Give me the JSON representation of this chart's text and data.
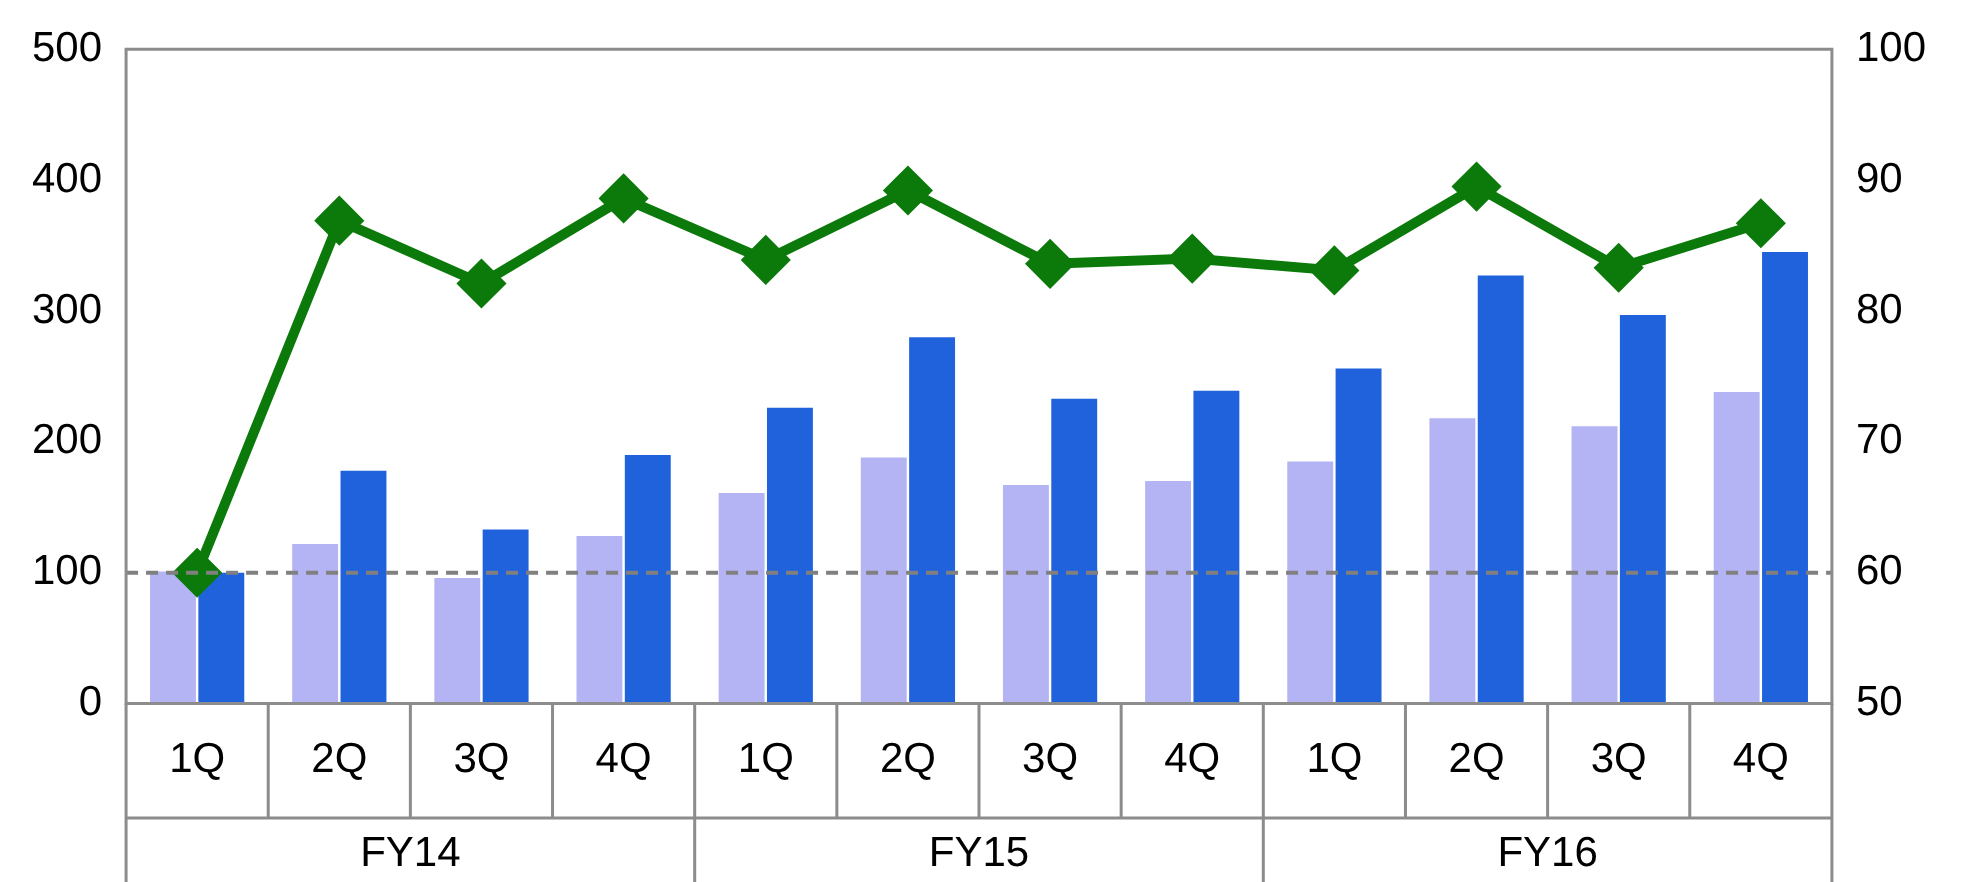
{
  "chart_data": {
    "type": "bar",
    "categories": [
      "1Q",
      "2Q",
      "3Q",
      "4Q",
      "1Q",
      "2Q",
      "3Q",
      "4Q",
      "1Q",
      "2Q",
      "3Q",
      "4Q"
    ],
    "annotations": [
      "FY14",
      "FY15",
      "FY16"
    ],
    "series": [
      {
        "color": "#b4b4f4",
        "values": [
          101,
          122,
          96,
          128,
          161,
          188,
          167,
          170,
          185,
          218,
          212,
          238
        ]
      },
      {
        "color": "#1f62dc",
        "values": [
          100,
          178,
          133,
          190,
          226,
          280,
          233,
          239,
          256,
          327,
          297,
          345
        ]
      },
      {
        "type": "line",
        "axis": "y2",
        "color": "#0b7a0b",
        "marker": "diamond",
        "line_style": "solid",
        "values": [
          60,
          86.9,
          82.1,
          88.6,
          83.9,
          89.2,
          83.6,
          84.0,
          83.1,
          89.5,
          83.3,
          86.7
        ]
      }
    ],
    "ylim": [
      0,
      500
    ],
    "yticks": [
      0,
      100,
      200,
      300,
      400,
      500
    ],
    "y2lim": [
      50,
      100
    ],
    "y2ticks": [
      50,
      60,
      70,
      80,
      90,
      100
    ],
    "ref_lines": [
      {
        "axis": "y",
        "value": 100,
        "color": "#808080",
        "line_style": "dashed"
      }
    ],
    "grid": false,
    "legend": false
  }
}
